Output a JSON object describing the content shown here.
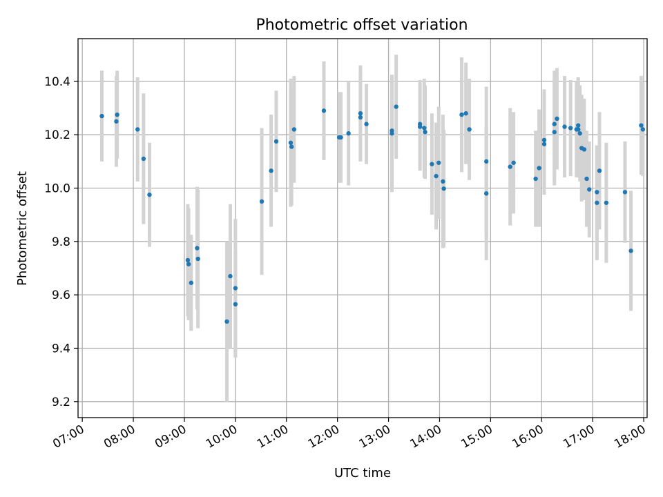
{
  "chart_data": {
    "type": "scatter",
    "title": "Photometric offset variation",
    "xlabel": "UTC time",
    "ylabel": "Photometric offset",
    "x_ticks": [
      "07:00",
      "08:00",
      "09:00",
      "10:00",
      "11:00",
      "12:00",
      "13:00",
      "14:00",
      "15:00",
      "16:00",
      "17:00",
      "18:00"
    ],
    "y_ticks": [
      "9.2",
      "9.4",
      "9.6",
      "9.8",
      "10.0",
      "10.2",
      "10.4"
    ],
    "xlim": [
      "06:55",
      "18:04"
    ],
    "ylim": [
      9.14,
      10.56
    ],
    "grid": true,
    "colors": {
      "points": "#1f77b4",
      "errorbars": "#d3d3d3",
      "grid": "#b0b0b0"
    },
    "series": [
      {
        "x": [
          "07:23",
          "07:40",
          "07:41",
          "08:05",
          "08:12",
          "08:19",
          "09:04",
          "09:05",
          "09:08",
          "09:15",
          "09:16",
          "09:50",
          "09:54",
          "10:00",
          "10:00",
          "10:31",
          "10:42",
          "10:48",
          "11:05",
          "11:06",
          "11:09",
          "11:44",
          "12:02",
          "12:04",
          "12:13",
          "12:27",
          "12:27",
          "12:34",
          "13:04",
          "13:04",
          "13:09",
          "13:37",
          "13:37",
          "13:42",
          "13:43",
          "13:51",
          "13:56",
          "13:59",
          "14:04",
          "14:05",
          "14:26",
          "14:31",
          "14:35",
          "14:55",
          "14:55",
          "15:23",
          "15:27",
          "15:53",
          "15:57",
          "16:03",
          "16:03",
          "16:15",
          "16:15",
          "16:18",
          "16:27",
          "16:34",
          "16:41",
          "16:43",
          "16:43",
          "16:45",
          "16:47",
          "16:50",
          "16:53",
          "16:56",
          "17:05",
          "17:05",
          "17:08",
          "17:16",
          "17:38",
          "17:45",
          "17:57",
          "17:59"
        ],
        "y": [
          10.27,
          10.25,
          10.275,
          10.22,
          10.11,
          9.975,
          9.73,
          9.715,
          9.645,
          9.775,
          9.735,
          9.5,
          9.67,
          9.625,
          9.565,
          9.95,
          10.065,
          10.175,
          10.17,
          10.155,
          10.22,
          10.29,
          10.19,
          10.19,
          10.205,
          10.28,
          10.265,
          10.24,
          10.215,
          10.205,
          10.305,
          10.24,
          10.23,
          10.225,
          10.21,
          10.09,
          10.045,
          10.095,
          10.025,
          9.998,
          10.275,
          10.28,
          10.22,
          9.98,
          10.1,
          10.08,
          10.095,
          10.035,
          10.075,
          10.18,
          10.165,
          10.21,
          10.24,
          10.26,
          10.23,
          10.225,
          10.22,
          10.22,
          10.235,
          10.205,
          10.15,
          10.145,
          10.035,
          9.995,
          9.985,
          9.945,
          10.065,
          9.945,
          9.985,
          9.765,
          10.235,
          10.22
        ],
        "err": [
          0.17,
          0.17,
          0.165,
          0.195,
          0.245,
          0.195,
          0.21,
          0.21,
          0.18,
          0.23,
          0.26,
          0.3,
          0.27,
          0.26,
          0.2,
          0.275,
          0.21,
          0.19,
          0.24,
          0.22,
          0.2,
          0.185,
          0.17,
          0.17,
          0.195,
          0.18,
          0.165,
          0.15,
          0.2,
          0.22,
          0.195,
          0.165,
          0.165,
          0.185,
          0.175,
          0.19,
          0.2,
          0.21,
          0.25,
          0.22,
          0.215,
          0.19,
          0.19,
          0.25,
          0.28,
          0.22,
          0.19,
          0.18,
          0.22,
          0.19,
          0.19,
          0.2,
          0.2,
          0.19,
          0.19,
          0.18,
          0.18,
          0.175,
          0.18,
          0.18,
          0.2,
          0.19,
          0.18,
          0.18,
          0.175,
          0.215,
          0.22,
          0.225,
          0.19,
          0.225,
          0.185,
          0.175
        ]
      }
    ]
  }
}
